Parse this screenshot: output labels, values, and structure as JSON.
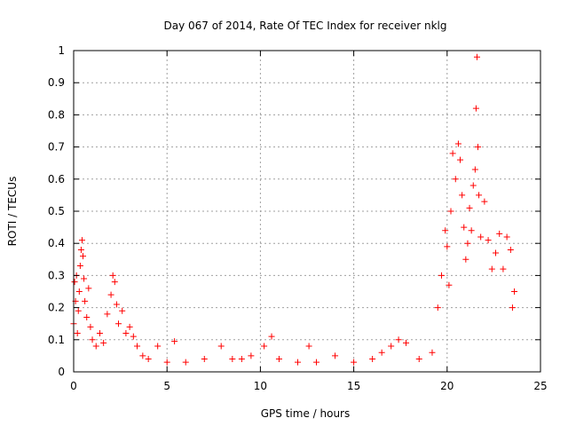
{
  "chart_data": {
    "type": "scatter",
    "title": "Day 067 of 2014, Rate Of TEC Index for receiver nklg",
    "xlabel": "GPS time / hours",
    "ylabel": "ROTI / TECUs",
    "xlim": [
      0,
      25
    ],
    "ylim": [
      0,
      1
    ],
    "xticks": [
      "0",
      "5",
      "10",
      "15",
      "20",
      "25"
    ],
    "yticks": [
      "0",
      "0.1",
      "0.2",
      "0.3",
      "0.4",
      "0.5",
      "0.6",
      "0.7",
      "0.8",
      "0.9",
      "1"
    ],
    "grid": true,
    "marker": "+",
    "marker_color": "#ff0000",
    "series": [
      {
        "name": "ROTI",
        "points": [
          [
            0.0,
            0.15
          ],
          [
            0.05,
            0.28
          ],
          [
            0.1,
            0.22
          ],
          [
            0.15,
            0.3
          ],
          [
            0.2,
            0.12
          ],
          [
            0.25,
            0.19
          ],
          [
            0.3,
            0.25
          ],
          [
            0.35,
            0.33
          ],
          [
            0.4,
            0.38
          ],
          [
            0.45,
            0.41
          ],
          [
            0.5,
            0.36
          ],
          [
            0.55,
            0.29
          ],
          [
            0.6,
            0.22
          ],
          [
            0.7,
            0.17
          ],
          [
            0.8,
            0.26
          ],
          [
            0.9,
            0.14
          ],
          [
            1.0,
            0.1
          ],
          [
            1.2,
            0.08
          ],
          [
            1.4,
            0.12
          ],
          [
            1.6,
            0.09
          ],
          [
            1.8,
            0.18
          ],
          [
            2.0,
            0.24
          ],
          [
            2.1,
            0.3
          ],
          [
            2.2,
            0.28
          ],
          [
            2.3,
            0.21
          ],
          [
            2.4,
            0.15
          ],
          [
            2.6,
            0.19
          ],
          [
            2.8,
            0.12
          ],
          [
            3.0,
            0.14
          ],
          [
            3.2,
            0.11
          ],
          [
            3.4,
            0.08
          ],
          [
            3.7,
            0.05
          ],
          [
            4.0,
            0.04
          ],
          [
            4.5,
            0.08
          ],
          [
            5.0,
            0.03
          ],
          [
            5.4,
            0.095
          ],
          [
            6.0,
            0.03
          ],
          [
            7.0,
            0.04
          ],
          [
            7.9,
            0.08
          ],
          [
            8.5,
            0.04
          ],
          [
            9.0,
            0.04
          ],
          [
            9.5,
            0.05
          ],
          [
            10.2,
            0.08
          ],
          [
            10.6,
            0.11
          ],
          [
            11.0,
            0.04
          ],
          [
            12.0,
            0.03
          ],
          [
            12.6,
            0.08
          ],
          [
            13.0,
            0.03
          ],
          [
            14.0,
            0.05
          ],
          [
            15.0,
            0.03
          ],
          [
            16.0,
            0.04
          ],
          [
            16.5,
            0.06
          ],
          [
            17.0,
            0.08
          ],
          [
            17.4,
            0.1
          ],
          [
            17.8,
            0.09
          ],
          [
            18.5,
            0.04
          ],
          [
            19.2,
            0.06
          ],
          [
            19.5,
            0.2
          ],
          [
            19.7,
            0.3
          ],
          [
            19.9,
            0.44
          ],
          [
            20.0,
            0.39
          ],
          [
            20.1,
            0.27
          ],
          [
            20.2,
            0.5
          ],
          [
            20.3,
            0.68
          ],
          [
            20.45,
            0.6
          ],
          [
            20.6,
            0.71
          ],
          [
            20.7,
            0.66
          ],
          [
            20.8,
            0.55
          ],
          [
            20.9,
            0.45
          ],
          [
            21.0,
            0.35
          ],
          [
            21.1,
            0.4
          ],
          [
            21.2,
            0.51
          ],
          [
            21.3,
            0.44
          ],
          [
            21.4,
            0.58
          ],
          [
            21.5,
            0.63
          ],
          [
            21.55,
            0.82
          ],
          [
            21.6,
            0.98
          ],
          [
            21.65,
            0.7
          ],
          [
            21.7,
            0.55
          ],
          [
            21.8,
            0.42
          ],
          [
            22.0,
            0.53
          ],
          [
            22.2,
            0.41
          ],
          [
            22.4,
            0.32
          ],
          [
            22.6,
            0.37
          ],
          [
            22.8,
            0.43
          ],
          [
            23.0,
            0.32
          ],
          [
            23.2,
            0.42
          ],
          [
            23.4,
            0.38
          ],
          [
            23.5,
            0.2
          ],
          [
            23.6,
            0.25
          ]
        ]
      }
    ]
  }
}
